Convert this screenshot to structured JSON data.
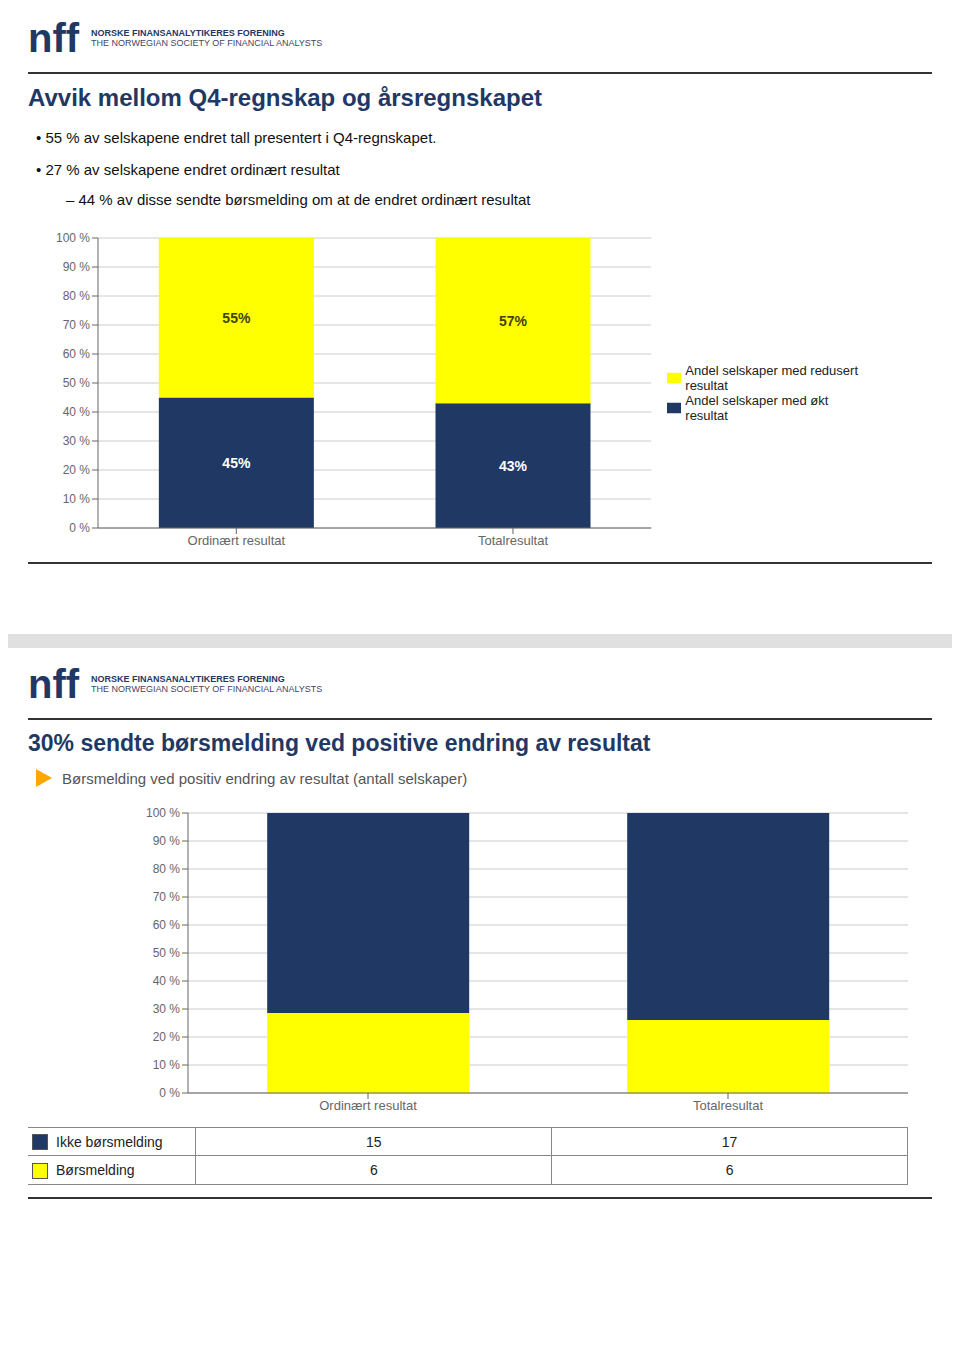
{
  "chart_data": [
    {
      "type": "bar",
      "stacked": true,
      "title": "Avvik mellom Q4-regnskap og årsregnskapet",
      "annotations": [
        "nff",
        "NORSKE FINANSANALYTIKERES FORENING",
        "THE NORWEGIAN SOCIETY OF FINANCIAL ANALYSTS",
        "•  55 % av selskapene endret tall presentert i Q4-regnskapet.",
        "•  27 % av selskapene endret ordinært resultat",
        "–  44 % av disse sendte børsmelding om at de endret ordinært resultat"
      ],
      "categories": [
        "Ordinært resultat",
        "Totalresultat"
      ],
      "series": [
        {
          "name": "Andel selskaper med økt\nresultat",
          "color": "#1F3864",
          "values": [
            45,
            43
          ],
          "value_labels": [
            "45%",
            "43%"
          ]
        },
        {
          "name": "Andel selskaper med redusert\nresultat",
          "color": "#FFFF00",
          "values": [
            55,
            57
          ],
          "value_labels": [
            "55%",
            "57%"
          ]
        }
      ],
      "ylim": [
        0,
        100
      ],
      "yticks": [
        {
          "value": 0,
          "label": "0 %"
        },
        {
          "value": 10,
          "label": "10 %"
        },
        {
          "value": 20,
          "label": "20 %"
        },
        {
          "value": 30,
          "label": "30 %"
        },
        {
          "value": 40,
          "label": "40 %"
        },
        {
          "value": 50,
          "label": "50 %"
        },
        {
          "value": 60,
          "label": "60 %"
        },
        {
          "value": 70,
          "label": "70 %"
        },
        {
          "value": 80,
          "label": "80 %"
        },
        {
          "value": 90,
          "label": "90 %"
        },
        {
          "value": 100,
          "label": "100 %"
        }
      ],
      "grid": true,
      "legend": "right",
      "data_labels": true
    },
    {
      "type": "bar",
      "stacked": true,
      "title": "30% sendte børsmelding ved positive endring av resultat",
      "subtitle": "Børsmelding ved positiv endring av resultat (antall selskaper)",
      "annotations": [
        "nff",
        "NORSKE FINANSANALYTIKERES FORENING",
        "THE NORWEGIAN SOCIETY OF FINANCIAL ANALYSTS"
      ],
      "categories": [
        "Ordinært resultat",
        "Totalresultat"
      ],
      "series": [
        {
          "name": "Børsmelding",
          "color": "#FFFF00",
          "values": [
            28.57,
            26.09
          ]
        },
        {
          "name": "Ikke børsmelding",
          "color": "#1F3864",
          "values": [
            71.43,
            73.91
          ]
        }
      ],
      "ylim": [
        0,
        100
      ],
      "yticks": [
        {
          "value": 0,
          "label": "0 %"
        },
        {
          "value": 10,
          "label": "10 %"
        },
        {
          "value": 20,
          "label": "20 %"
        },
        {
          "value": 30,
          "label": "30 %"
        },
        {
          "value": 40,
          "label": "40 %"
        },
        {
          "value": 50,
          "label": "50 %"
        },
        {
          "value": 60,
          "label": "60 %"
        },
        {
          "value": 70,
          "label": "70 %"
        },
        {
          "value": 80,
          "label": "80 %"
        },
        {
          "value": 90,
          "label": "90 %"
        },
        {
          "value": 100,
          "label": "100 %"
        }
      ],
      "grid": true,
      "table": {
        "rows": [
          "Ikke børsmelding",
          "Børsmelding"
        ],
        "row_colors": [
          "#1F3864",
          "#FFFF00"
        ],
        "values": [
          [
            15,
            17
          ],
          [
            6,
            6
          ]
        ]
      }
    }
  ]
}
